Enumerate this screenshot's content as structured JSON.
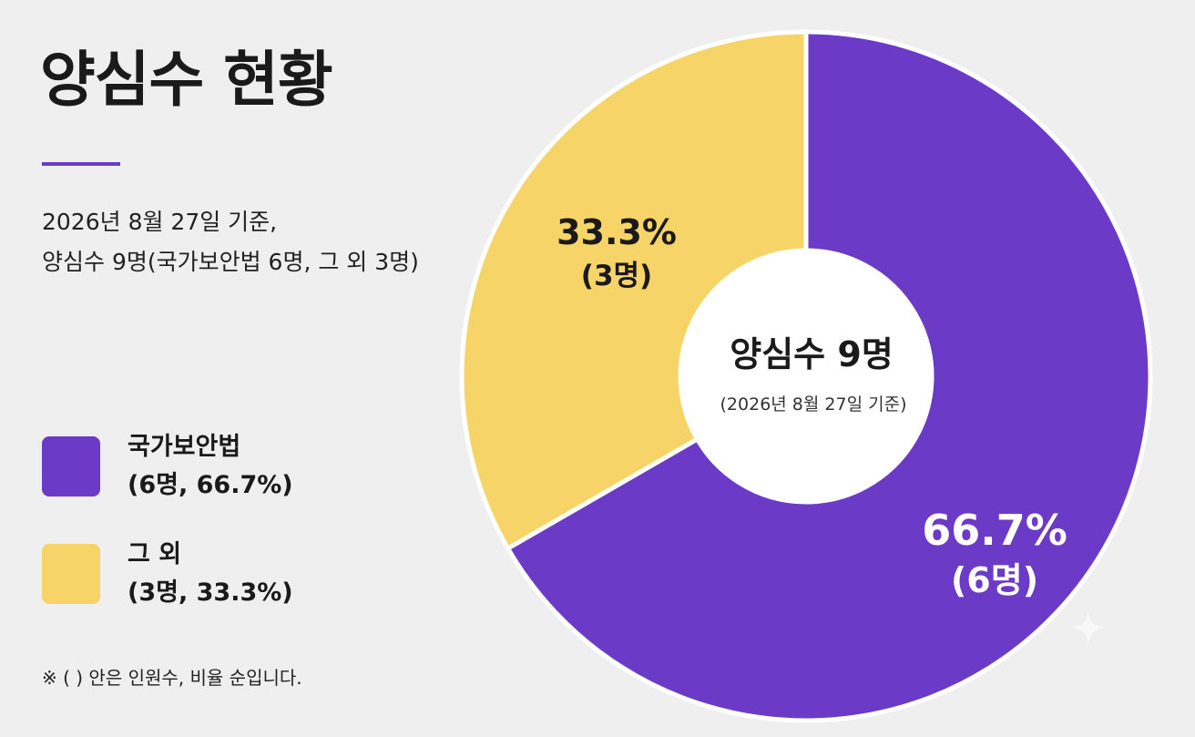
{
  "title": "양심수 현황",
  "subtitle": {
    "line1": "2026년 8월 27일 기준,",
    "line2": "양심수 9명(국가보안법 6명, 그 외 3명)"
  },
  "legend": [
    {
      "name": "국가보안법",
      "detail": "(6명, 66.7%)",
      "color": "#6b3ac6"
    },
    {
      "name": "그 외",
      "detail": "(3명, 33.3%)",
      "color": "#f7d468"
    }
  ],
  "footnote": "※ ( ) 안은 인원수, 비율 순입니다.",
  "chart_data": {
    "type": "pie",
    "center_label": {
      "main": "양심수 9명",
      "sub": "(2026년 8월 27일 기준)"
    },
    "slices": [
      {
        "name": "국가보안법",
        "value": 6,
        "percent_label": "66.7%",
        "count_label": "(6명)",
        "color": "#6b3ac6",
        "label_color": "#ffffff"
      },
      {
        "name": "그 외",
        "value": 3,
        "percent_label": "33.3%",
        "count_label": "(3명)",
        "color": "#f7d468",
        "label_color": "#1a1a1a"
      }
    ]
  }
}
